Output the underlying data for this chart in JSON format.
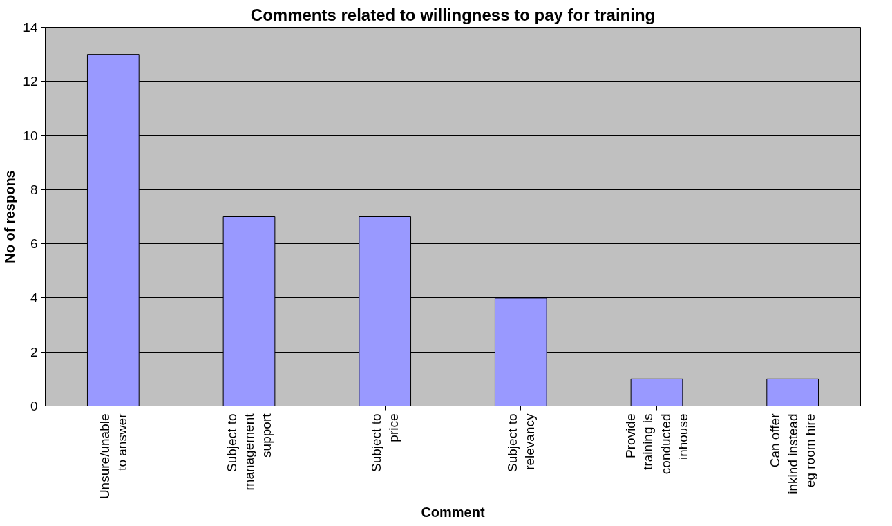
{
  "chart_data": {
    "type": "bar",
    "title": "Comments related to willingness to pay for training",
    "xlabel": "Comment",
    "ylabel": "No of respons",
    "categories": [
      "Unsure/unable to answer",
      "Subject to management support",
      "Subject to price",
      "Subject to relevancy",
      "Provide training is conducted inhouse",
      "Can offer inkind instead eg room hire"
    ],
    "values": [
      13,
      7,
      7,
      4,
      1,
      1
    ],
    "color": "#9999ff",
    "ylim": [
      0,
      14
    ],
    "yticks": [
      0,
      2,
      4,
      6,
      8,
      10,
      12,
      14
    ],
    "grid": "y"
  }
}
